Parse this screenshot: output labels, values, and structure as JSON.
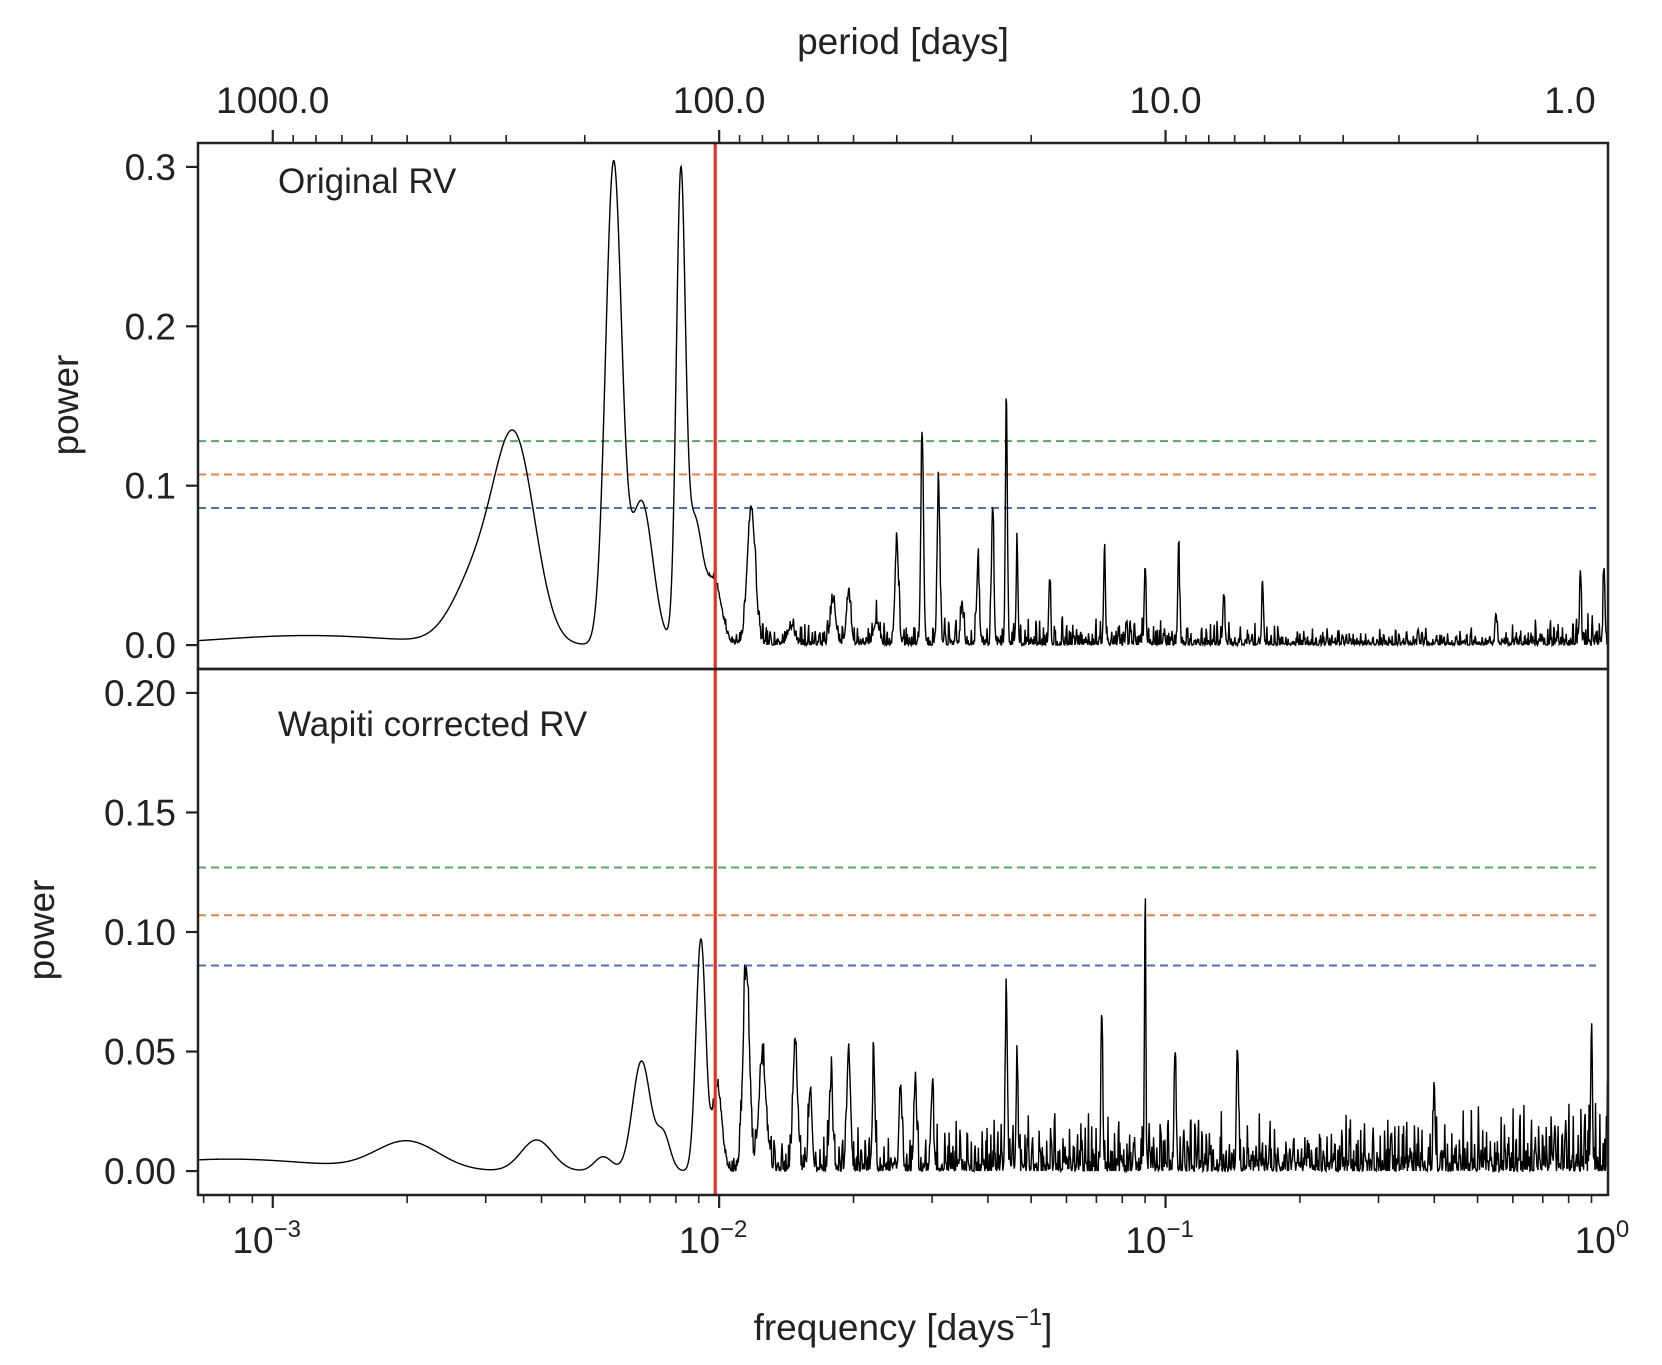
{
  "chart_data": {
    "type": "line",
    "x_axis": {
      "label_prefix": "frequency [days",
      "label_exponent": "−1",
      "label_suffix": "]",
      "scale": "log",
      "xlim": [
        0.00068,
        0.98
      ],
      "ticks": [
        {
          "value": 0.001,
          "base": "10",
          "exponent": "−3"
        },
        {
          "value": 0.01,
          "base": "10",
          "exponent": "−2"
        },
        {
          "value": 0.1,
          "base": "10",
          "exponent": "−1"
        },
        {
          "value": 1.0,
          "base": "10",
          "exponent": "0"
        }
      ]
    },
    "top_axis": {
      "label": "period [days]",
      "scale": "log",
      "ticks": [
        {
          "value": 1000.0,
          "label": "1000.0"
        },
        {
          "value": 100.0,
          "label": "100.0"
        },
        {
          "value": 10.0,
          "label": "10.0"
        },
        {
          "value": 1.0,
          "label": "1.0"
        }
      ]
    },
    "vertical_line": {
      "frequency": 0.0098,
      "color": "#e8302a"
    },
    "threshold_colors": [
      "#4c72b0",
      "#dd8452",
      "#55a868"
    ],
    "panels": [
      {
        "annotation": "Original RV",
        "ylabel": "power",
        "ylim": [
          -0.015,
          0.315
        ],
        "yticks": [
          {
            "value": 0.0,
            "label": "0.0"
          },
          {
            "value": 0.1,
            "label": "0.1"
          },
          {
            "value": 0.2,
            "label": "0.2"
          },
          {
            "value": 0.3,
            "label": "0.3"
          }
        ],
        "thresholds": [
          0.086,
          0.107,
          0.128
        ],
        "noise_seed": 7,
        "noise_levels": [
          [
            0.012,
            0.014
          ],
          [
            0.04,
            0.018
          ],
          [
            0.1,
            0.02
          ],
          [
            0.2,
            0.012
          ],
          [
            0.5,
            0.012
          ],
          [
            0.98,
            0.025
          ]
        ],
        "peaks": [
          {
            "f": 0.0012,
            "a": 0.006,
            "w": 0.2
          },
          {
            "f": 0.0029,
            "a": 0.045,
            "w": 0.055
          },
          {
            "f": 0.0035,
            "a": 0.118,
            "w": 0.045
          },
          {
            "f": 0.0058,
            "a": 0.3,
            "w": 0.018
          },
          {
            "f": 0.0067,
            "a": 0.09,
            "w": 0.025
          },
          {
            "f": 0.0082,
            "a": 0.275,
            "w": 0.01
          },
          {
            "f": 0.0088,
            "a": 0.08,
            "w": 0.02
          },
          {
            "f": 0.0098,
            "a": 0.035,
            "w": 0.015
          },
          {
            "f": 0.0118,
            "a": 0.085,
            "w": 0.009
          },
          {
            "f": 0.0145,
            "a": 0.01,
            "w": 0.008
          },
          {
            "f": 0.018,
            "a": 0.026,
            "w": 0.006
          },
          {
            "f": 0.0195,
            "a": 0.031,
            "w": 0.005
          },
          {
            "f": 0.0225,
            "a": 0.014,
            "w": 0.006
          },
          {
            "f": 0.025,
            "a": 0.064,
            "w": 0.004
          },
          {
            "f": 0.0285,
            "a": 0.132,
            "w": 0.003
          },
          {
            "f": 0.031,
            "a": 0.102,
            "w": 0.003
          },
          {
            "f": 0.035,
            "a": 0.025,
            "w": 0.003
          },
          {
            "f": 0.038,
            "a": 0.048,
            "w": 0.003
          },
          {
            "f": 0.041,
            "a": 0.088,
            "w": 0.0025
          },
          {
            "f": 0.044,
            "a": 0.152,
            "w": 0.0022
          },
          {
            "f": 0.0465,
            "a": 0.058,
            "w": 0.002
          },
          {
            "f": 0.055,
            "a": 0.042,
            "w": 0.002
          },
          {
            "f": 0.073,
            "a": 0.055,
            "w": 0.002
          },
          {
            "f": 0.09,
            "a": 0.05,
            "w": 0.002
          },
          {
            "f": 0.107,
            "a": 0.062,
            "w": 0.002
          },
          {
            "f": 0.135,
            "a": 0.03,
            "w": 0.002
          },
          {
            "f": 0.165,
            "a": 0.035,
            "w": 0.002
          },
          {
            "f": 0.55,
            "a": 0.02,
            "w": 0.002
          },
          {
            "f": 0.85,
            "a": 0.042,
            "w": 0.002
          },
          {
            "f": 0.96,
            "a": 0.046,
            "w": 0.002
          }
        ]
      },
      {
        "annotation": "Wapiti corrected RV",
        "ylabel": "power",
        "ylim": [
          -0.01,
          0.21
        ],
        "yticks": [
          {
            "value": 0.0,
            "label": "0.00"
          },
          {
            "value": 0.05,
            "label": "0.05"
          },
          {
            "value": 0.1,
            "label": "0.10"
          },
          {
            "value": 0.15,
            "label": "0.15"
          },
          {
            "value": 0.2,
            "label": "0.20"
          }
        ],
        "thresholds": [
          0.086,
          0.107,
          0.127
        ],
        "noise_seed": 23,
        "noise_levels": [
          [
            0.012,
            0.018
          ],
          [
            0.03,
            0.02
          ],
          [
            0.06,
            0.026
          ],
          [
            0.1,
            0.026
          ],
          [
            0.3,
            0.026
          ],
          [
            0.7,
            0.03
          ],
          [
            0.98,
            0.04
          ]
        ],
        "peaks": [
          {
            "f": 0.0008,
            "a": 0.005,
            "w": 0.2
          },
          {
            "f": 0.002,
            "a": 0.012,
            "w": 0.07
          },
          {
            "f": 0.0039,
            "a": 0.013,
            "w": 0.035
          },
          {
            "f": 0.0055,
            "a": 0.006,
            "w": 0.02
          },
          {
            "f": 0.0067,
            "a": 0.046,
            "w": 0.02
          },
          {
            "f": 0.0075,
            "a": 0.015,
            "w": 0.015
          },
          {
            "f": 0.0091,
            "a": 0.097,
            "w": 0.011
          },
          {
            "f": 0.0099,
            "a": 0.035,
            "w": 0.01
          },
          {
            "f": 0.0115,
            "a": 0.084,
            "w": 0.007
          },
          {
            "f": 0.0125,
            "a": 0.045,
            "w": 0.008
          },
          {
            "f": 0.0148,
            "a": 0.053,
            "w": 0.005
          },
          {
            "f": 0.016,
            "a": 0.034,
            "w": 0.004
          },
          {
            "f": 0.0178,
            "a": 0.034,
            "w": 0.004
          },
          {
            "f": 0.0195,
            "a": 0.05,
            "w": 0.004
          },
          {
            "f": 0.0222,
            "a": 0.042,
            "w": 0.003
          },
          {
            "f": 0.0255,
            "a": 0.034,
            "w": 0.003
          },
          {
            "f": 0.0275,
            "a": 0.038,
            "w": 0.003
          },
          {
            "f": 0.03,
            "a": 0.032,
            "w": 0.003
          },
          {
            "f": 0.044,
            "a": 0.075,
            "w": 0.0022
          },
          {
            "f": 0.0465,
            "a": 0.047,
            "w": 0.002
          },
          {
            "f": 0.072,
            "a": 0.065,
            "w": 0.002
          },
          {
            "f": 0.09,
            "a": 0.11,
            "w": 0.0015
          },
          {
            "f": 0.105,
            "a": 0.05,
            "w": 0.002
          },
          {
            "f": 0.145,
            "a": 0.05,
            "w": 0.002
          },
          {
            "f": 0.4,
            "a": 0.035,
            "w": 0.002
          },
          {
            "f": 0.9,
            "a": 0.052,
            "w": 0.002
          }
        ]
      }
    ]
  }
}
